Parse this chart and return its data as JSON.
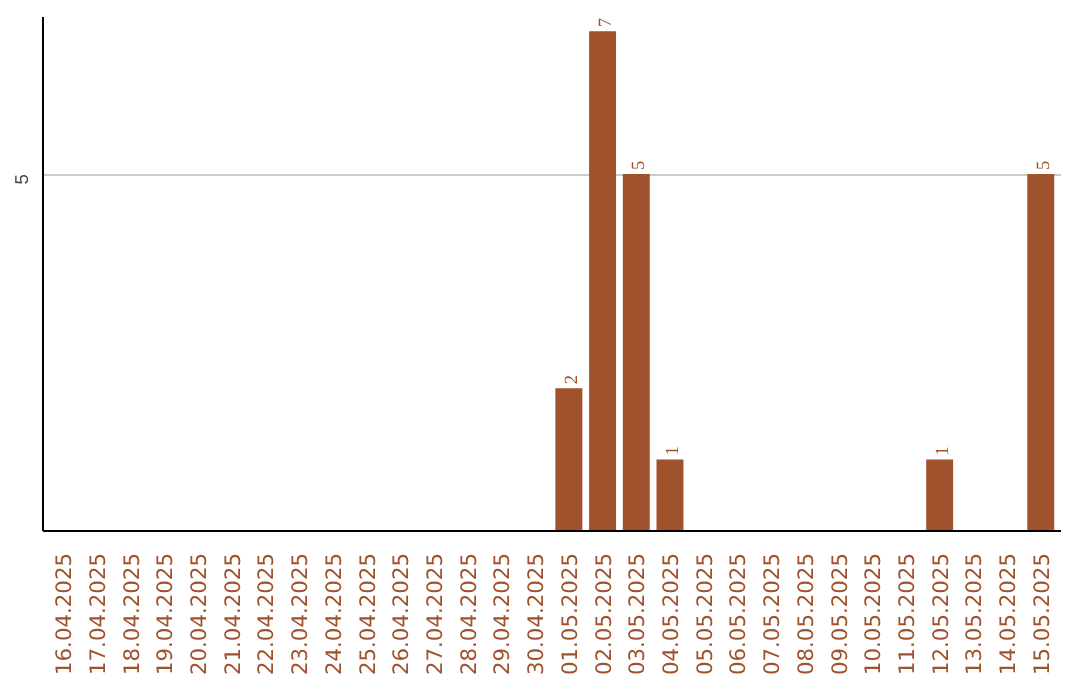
{
  "chart_data": {
    "type": "bar",
    "categories": [
      "16.04.2025",
      "17.04.2025",
      "18.04.2025",
      "19.04.2025",
      "20.04.2025",
      "21.04.2025",
      "22.04.2025",
      "23.04.2025",
      "24.04.2025",
      "25.04.2025",
      "26.04.2025",
      "27.04.2025",
      "28.04.2025",
      "29.04.2025",
      "30.04.2025",
      "01.05.2025",
      "02.05.2025",
      "03.05.2025",
      "04.05.2025",
      "05.05.2025",
      "06.05.2025",
      "07.05.2025",
      "08.05.2025",
      "09.05.2025",
      "10.05.2025",
      "11.05.2025",
      "12.05.2025",
      "13.05.2025",
      "14.05.2025",
      "15.05.2025"
    ],
    "values": [
      null,
      null,
      null,
      null,
      null,
      null,
      null,
      null,
      null,
      null,
      null,
      null,
      null,
      null,
      null,
      2,
      7,
      5,
      1,
      null,
      null,
      null,
      null,
      null,
      null,
      null,
      1,
      null,
      null,
      5
    ],
    "value_labels": [
      null,
      null,
      null,
      null,
      null,
      null,
      null,
      null,
      null,
      null,
      null,
      null,
      null,
      null,
      null,
      "2",
      "7",
      "5",
      "1",
      null,
      null,
      null,
      null,
      null,
      null,
      null,
      "1",
      null,
      null,
      "5"
    ],
    "color": "#a0522d",
    "ylim": [
      0,
      7.2
    ],
    "yticks": [
      5
    ],
    "grid": "y"
  }
}
